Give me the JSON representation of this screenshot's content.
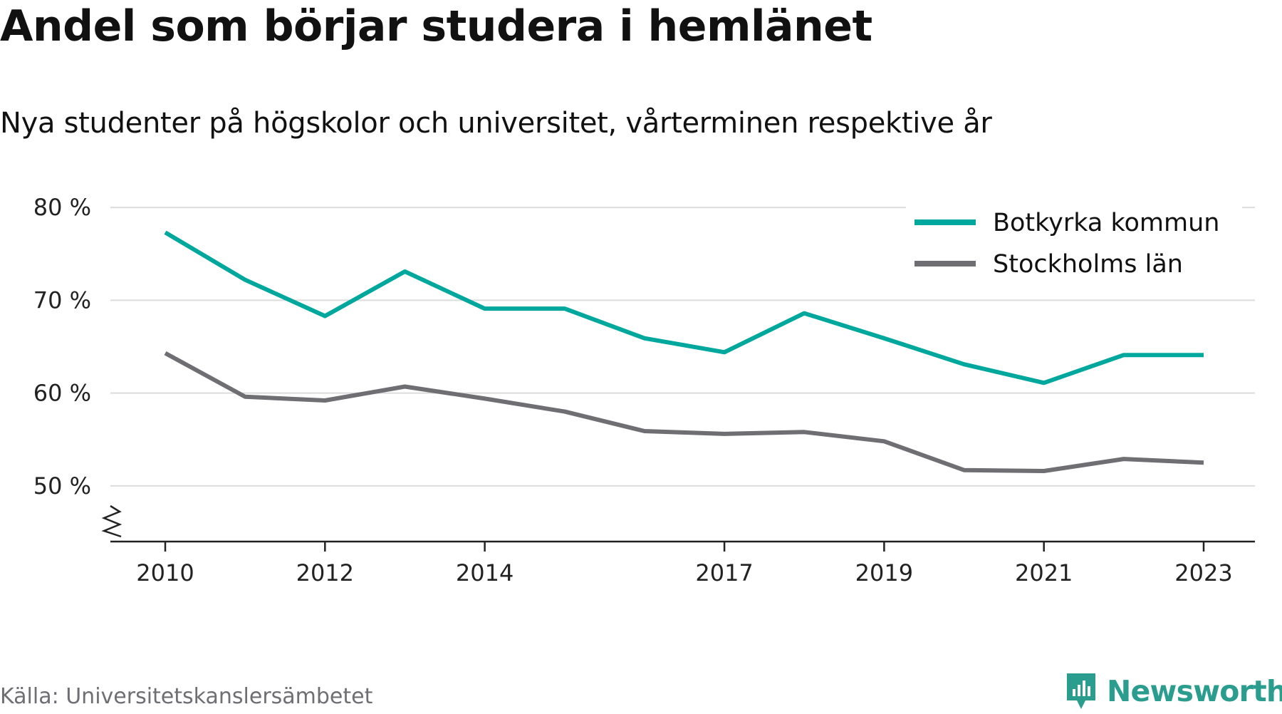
{
  "title": "Andel som börjar studera i hemlänet",
  "subtitle": "Nya studenter på högskolor och universitet, vårterminen respektive år",
  "source": "Källa: Universitetskanslersämbetet",
  "brand": {
    "name": "Newsworthy",
    "icon": "newsworthy-logo-icon",
    "color": "#2a9d8f"
  },
  "chart_data": {
    "type": "line",
    "x": [
      2010,
      2011,
      2012,
      2013,
      2014,
      2015,
      2016,
      2017,
      2018,
      2019,
      2020,
      2021,
      2022,
      2023
    ],
    "x_ticks": [
      2010,
      2012,
      2014,
      2017,
      2019,
      2021,
      2023
    ],
    "x_tick_labels": [
      "2010",
      "2012",
      "2014",
      "2017",
      "2019",
      "2021",
      "2023"
    ],
    "y_ticks": [
      50,
      60,
      70,
      80
    ],
    "y_tick_labels": [
      "50 %",
      "60 %",
      "70 %",
      "80 %"
    ],
    "ylim": [
      44,
      83
    ],
    "grid": true,
    "axis_break": true,
    "legend_position": "top-right",
    "series": [
      {
        "name": "Botkyrka kommun",
        "color": "#00a79d",
        "values": [
          77.3,
          72.2,
          68.3,
          73.1,
          69.1,
          69.1,
          65.9,
          64.4,
          68.6,
          65.9,
          63.1,
          61.1,
          64.1,
          64.1
        ]
      },
      {
        "name": "Stockholms län",
        "color": "#6e6e73",
        "values": [
          64.3,
          59.6,
          59.2,
          60.7,
          59.4,
          58.0,
          55.9,
          55.6,
          55.8,
          54.8,
          51.7,
          51.6,
          52.9,
          52.5
        ]
      }
    ]
  }
}
